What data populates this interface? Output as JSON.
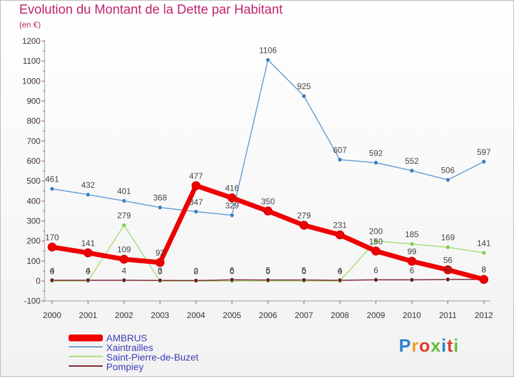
{
  "title": "Evolution du Montant de la Dette par Habitant",
  "subtitle": "(en €)",
  "logo": {
    "text": "Proxiti",
    "colors": [
      "#2b7fd3",
      "#f0a020",
      "#d93a2b",
      "#5fbf3a",
      "#2b7fd3",
      "#d93a2b",
      "#5fbf3a"
    ]
  },
  "chart_data": {
    "type": "line",
    "title": "Evolution du Montant de la Dette par Habitant",
    "subtitle": "(en €)",
    "x": [
      "2000",
      "2001",
      "2002",
      "2003",
      "2004",
      "2005",
      "2006",
      "2007",
      "2008",
      "2009",
      "2010",
      "2011",
      "2012"
    ],
    "ylim": [
      -100,
      1200
    ],
    "yticks": [
      -100,
      0,
      100,
      200,
      300,
      400,
      500,
      600,
      700,
      800,
      900,
      1000,
      1100,
      1200
    ],
    "grid": false,
    "legend_position": "bottom-left",
    "series": [
      {
        "name": "Xaintrailles",
        "color": "#6a9fd4",
        "marker": "#3b7cc4",
        "values": [
          461,
          432,
          401,
          368,
          347,
          329,
          1106,
          925,
          607,
          592,
          552,
          506,
          597
        ],
        "labels": [
          "461",
          "432",
          "401",
          "368",
          "347",
          "329",
          "1106",
          "925",
          "607",
          "592",
          "552",
          "506",
          "597"
        ]
      },
      {
        "name": "Saint-Pierre-de-Buzet",
        "color": "#a8df7a",
        "marker": "#7dce45",
        "values": [
          0,
          0,
          279,
          0,
          0,
          0,
          0,
          0,
          0,
          200,
          185,
          169,
          141
        ],
        "labels": [
          "0",
          "0",
          "279",
          "0",
          "0",
          "0",
          "0",
          "0",
          "0",
          "200",
          "185",
          "169",
          "141"
        ]
      },
      {
        "name": "Pompiey",
        "color": "#7a2630",
        "marker": "#6b1a24",
        "values": [
          4,
          4,
          4,
          3,
          2,
          6,
          5,
          5,
          4,
          6,
          6,
          8,
          8
        ],
        "labels": [
          "4",
          "4",
          "4",
          "3",
          "2",
          "6",
          "5",
          "5",
          "4",
          "6",
          "6",
          "8",
          "8"
        ]
      },
      {
        "name": "AMBRUS",
        "color": "#ee0000",
        "marker": "#ee0000",
        "values": [
          170,
          141,
          109,
          93,
          477,
          416,
          350,
          279,
          231,
          150,
          99,
          56,
          8
        ],
        "labels": [
          "170",
          "141",
          "109",
          "93",
          "477",
          "416",
          "350",
          "279",
          "231",
          "150",
          "99",
          "56",
          "8"
        ]
      }
    ],
    "legend_order": [
      "AMBRUS",
      "Xaintrailles",
      "Saint-Pierre-de-Buzet",
      "Pompiey"
    ]
  }
}
